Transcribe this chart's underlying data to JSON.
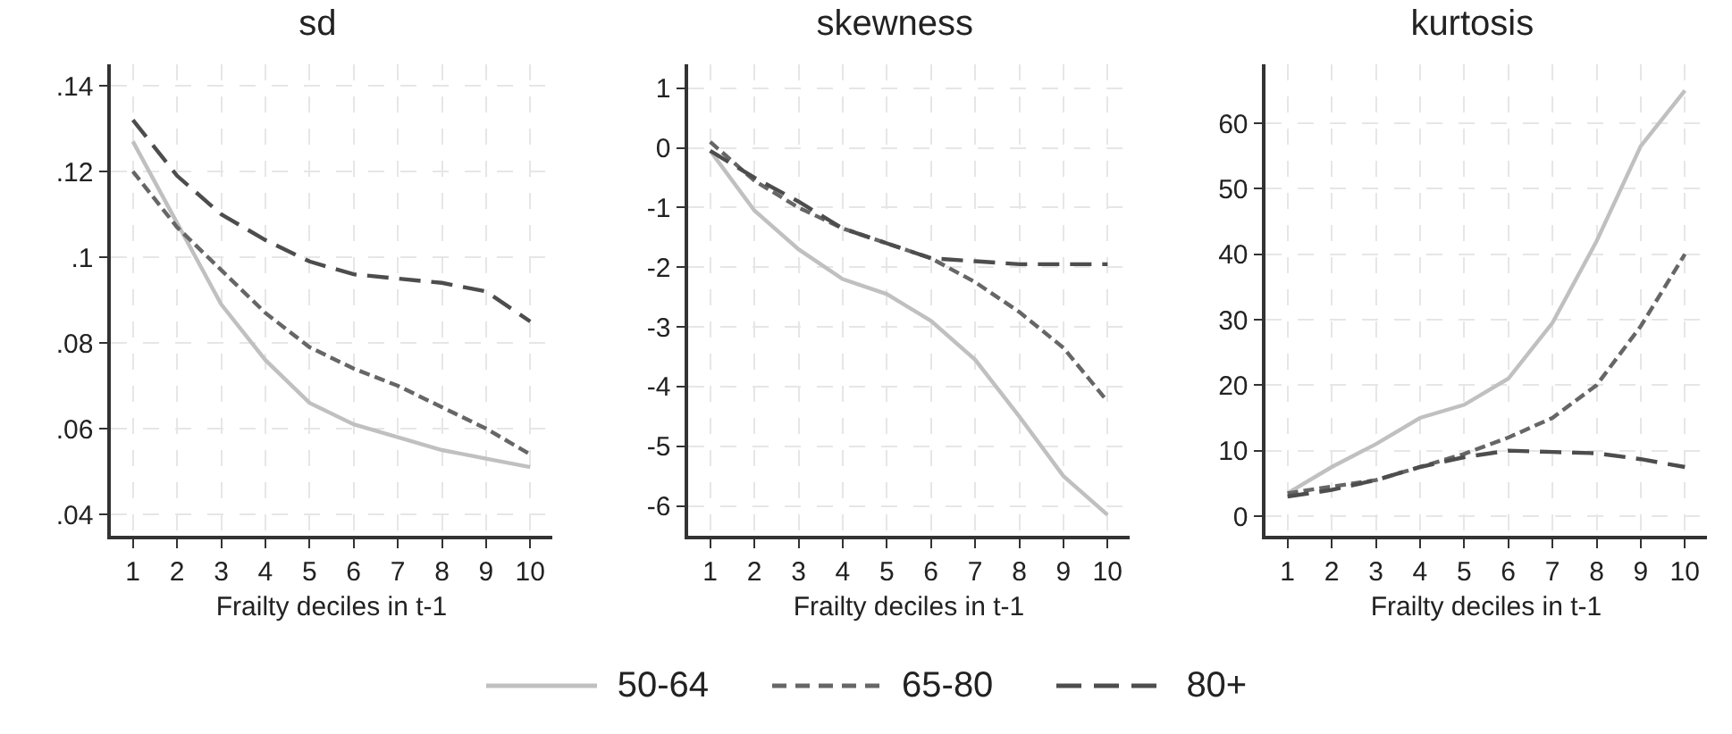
{
  "chart_data": [
    {
      "type": "line",
      "title": "sd",
      "xlabel": "Frailty deciles in t-1",
      "x": [
        1,
        2,
        3,
        4,
        5,
        6,
        7,
        8,
        9,
        10
      ],
      "xlim": [
        0.5,
        10.5
      ],
      "xticks": [
        1,
        2,
        3,
        4,
        5,
        6,
        7,
        8,
        9,
        10
      ],
      "ylim": [
        0.035,
        0.145
      ],
      "yticks": [
        {
          "value": 0.04,
          "label": ".04"
        },
        {
          "value": 0.06,
          "label": ".06"
        },
        {
          "value": 0.08,
          "label": ".08"
        },
        {
          "value": 0.1,
          "label": ".1"
        },
        {
          "value": 0.12,
          "label": ".12"
        },
        {
          "value": 0.14,
          "label": ".14"
        }
      ],
      "grid": true,
      "legend": "bottom",
      "marker": "none",
      "series": [
        {
          "name": "50-64",
          "color": "#c0c0c0",
          "line_style": "solid",
          "values": [
            0.127,
            0.108,
            0.089,
            0.076,
            0.066,
            0.061,
            0.058,
            0.055,
            0.053,
            0.051
          ]
        },
        {
          "name": "65-80",
          "color": "#666666",
          "line_style": "dashed",
          "values": [
            0.12,
            0.107,
            0.097,
            0.087,
            0.079,
            0.074,
            0.07,
            0.065,
            0.06,
            0.054
          ]
        },
        {
          "name": "80+",
          "color": "#4d4d4d",
          "line_style": "dashed",
          "values": [
            0.132,
            0.119,
            0.11,
            0.104,
            0.099,
            0.096,
            0.095,
            0.094,
            0.092,
            0.085
          ]
        }
      ]
    },
    {
      "type": "line",
      "title": "skewness",
      "xlabel": "Frailty deciles in t-1",
      "x": [
        1,
        2,
        3,
        4,
        5,
        6,
        7,
        8,
        9,
        10
      ],
      "xlim": [
        0.5,
        10.5
      ],
      "xticks": [
        1,
        2,
        3,
        4,
        5,
        6,
        7,
        8,
        9,
        10
      ],
      "ylim": [
        -6.5,
        1.4
      ],
      "yticks": [
        -6,
        -5,
        -4,
        -3,
        -2,
        -1,
        0,
        1
      ],
      "grid": true,
      "marker": "none",
      "series": [
        {
          "color": "#c0c0c0",
          "line_style": "solid",
          "values": [
            -0.05,
            -1.05,
            -1.7,
            -2.2,
            -2.45,
            -2.9,
            -3.55,
            -4.5,
            -5.5,
            -6.15
          ]
        },
        {
          "color": "#666666",
          "line_style": "dashed",
          "values": [
            0.1,
            -0.55,
            -1.0,
            -1.35,
            -1.6,
            -1.85,
            -2.25,
            -2.75,
            -3.35,
            -4.25
          ]
        },
        {
          "color": "#4d4d4d",
          "line_style": "dashed",
          "values": [
            -0.05,
            -0.5,
            -0.9,
            -1.35,
            -1.6,
            -1.85,
            -1.9,
            -1.95,
            -1.95,
            -1.95
          ]
        }
      ]
    },
    {
      "type": "line",
      "title": "kurtosis",
      "xlabel": "Frailty deciles in t-1",
      "x": [
        1,
        2,
        3,
        4,
        5,
        6,
        7,
        8,
        9,
        10
      ],
      "xlim": [
        0.5,
        10.5
      ],
      "xticks": [
        1,
        2,
        3,
        4,
        5,
        6,
        7,
        8,
        9,
        10
      ],
      "ylim": [
        -3,
        69
      ],
      "yticks": [
        0,
        10,
        20,
        30,
        40,
        50,
        60
      ],
      "grid": true,
      "marker": "none",
      "series": [
        {
          "color": "#c0c0c0",
          "line_style": "solid",
          "values": [
            3.5,
            7.5,
            11,
            15,
            17,
            21,
            29.5,
            42,
            56.5,
            65
          ]
        },
        {
          "color": "#666666",
          "line_style": "dashed",
          "values": [
            3.5,
            4.5,
            5.5,
            7.5,
            9.5,
            12,
            15,
            20,
            29,
            40
          ]
        },
        {
          "color": "#4d4d4d",
          "line_style": "dashed",
          "values": [
            3,
            4,
            5.5,
            7.5,
            9,
            10,
            9.8,
            9.6,
            8.7,
            7.5
          ]
        }
      ]
    }
  ]
}
